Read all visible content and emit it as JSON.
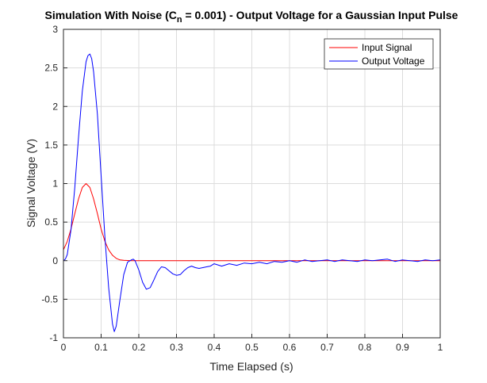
{
  "chart_data": {
    "type": "line",
    "title": {
      "prefix": "Simulation With Noise (C",
      "subscript": "n",
      "suffix": " = 0.001) - Output Voltage for a Gaussian Input Pulse"
    },
    "xlabel": "Time Elapsed (s)",
    "ylabel": "Signal Voltage (V)",
    "xlim": [
      0,
      1
    ],
    "ylim": [
      -1,
      3
    ],
    "xticks": [
      0,
      0.1,
      0.2,
      0.3,
      0.4,
      0.5,
      0.6,
      0.7,
      0.8,
      0.9,
      1
    ],
    "xtick_labels": [
      "0",
      "0.1",
      "0.2",
      "0.3",
      "0.4",
      "0.5",
      "0.6",
      "0.7",
      "0.8",
      "0.9",
      "1"
    ],
    "yticks": [
      -1,
      -0.5,
      0,
      0.5,
      1,
      1.5,
      2,
      2.5,
      3
    ],
    "ytick_labels": [
      "-1",
      "-0.5",
      "0",
      "0.5",
      "1",
      "1.5",
      "2",
      "2.5",
      "3"
    ],
    "grid": true,
    "legend_location": "top-right",
    "series": [
      {
        "name": "Input Signal",
        "color": "#ff0000",
        "x": [
          0,
          0.01,
          0.02,
          0.03,
          0.04,
          0.05,
          0.06,
          0.07,
          0.08,
          0.09,
          0.1,
          0.11,
          0.12,
          0.13,
          0.14,
          0.15,
          0.16,
          0.18,
          0.2,
          0.3,
          0.4,
          0.5,
          0.6,
          0.7,
          0.8,
          0.9,
          1.0
        ],
        "y": [
          0.14,
          0.25,
          0.41,
          0.61,
          0.8,
          0.95,
          1.0,
          0.95,
          0.8,
          0.61,
          0.41,
          0.25,
          0.14,
          0.07,
          0.03,
          0.01,
          0.005,
          0.0,
          0.0,
          0.0,
          0.0,
          0.0,
          0.0,
          0.0,
          0.0,
          0.0,
          0.0
        ]
      },
      {
        "name": "Output Voltage",
        "color": "#0000ff",
        "x": [
          0,
          0.005,
          0.01,
          0.02,
          0.03,
          0.04,
          0.05,
          0.06,
          0.065,
          0.07,
          0.075,
          0.08,
          0.09,
          0.1,
          0.11,
          0.12,
          0.13,
          0.135,
          0.14,
          0.15,
          0.16,
          0.17,
          0.18,
          0.185,
          0.19,
          0.2,
          0.21,
          0.22,
          0.23,
          0.24,
          0.25,
          0.26,
          0.27,
          0.28,
          0.29,
          0.3,
          0.31,
          0.32,
          0.33,
          0.34,
          0.35,
          0.36,
          0.37,
          0.38,
          0.39,
          0.4,
          0.42,
          0.44,
          0.46,
          0.48,
          0.5,
          0.52,
          0.54,
          0.56,
          0.58,
          0.6,
          0.62,
          0.64,
          0.66,
          0.68,
          0.7,
          0.72,
          0.74,
          0.76,
          0.78,
          0.8,
          0.82,
          0.84,
          0.86,
          0.88,
          0.9,
          0.92,
          0.94,
          0.96,
          0.98,
          1.0
        ],
        "y": [
          0.0,
          0.02,
          0.08,
          0.4,
          0.95,
          1.6,
          2.2,
          2.58,
          2.66,
          2.68,
          2.62,
          2.45,
          1.9,
          1.1,
          0.3,
          -0.35,
          -0.82,
          -0.92,
          -0.85,
          -0.5,
          -0.18,
          -0.02,
          0.01,
          0.02,
          0.0,
          -0.12,
          -0.28,
          -0.37,
          -0.35,
          -0.25,
          -0.14,
          -0.08,
          -0.09,
          -0.13,
          -0.17,
          -0.19,
          -0.18,
          -0.13,
          -0.09,
          -0.07,
          -0.09,
          -0.1,
          -0.09,
          -0.08,
          -0.07,
          -0.04,
          -0.07,
          -0.04,
          -0.06,
          -0.03,
          -0.04,
          -0.02,
          -0.04,
          -0.01,
          -0.02,
          0.0,
          -0.02,
          0.01,
          -0.01,
          0.0,
          0.01,
          -0.01,
          0.01,
          0.0,
          -0.01,
          0.01,
          0.0,
          0.01,
          0.02,
          -0.01,
          0.01,
          0.0,
          -0.01,
          0.01,
          0.0,
          0.01
        ]
      }
    ]
  }
}
